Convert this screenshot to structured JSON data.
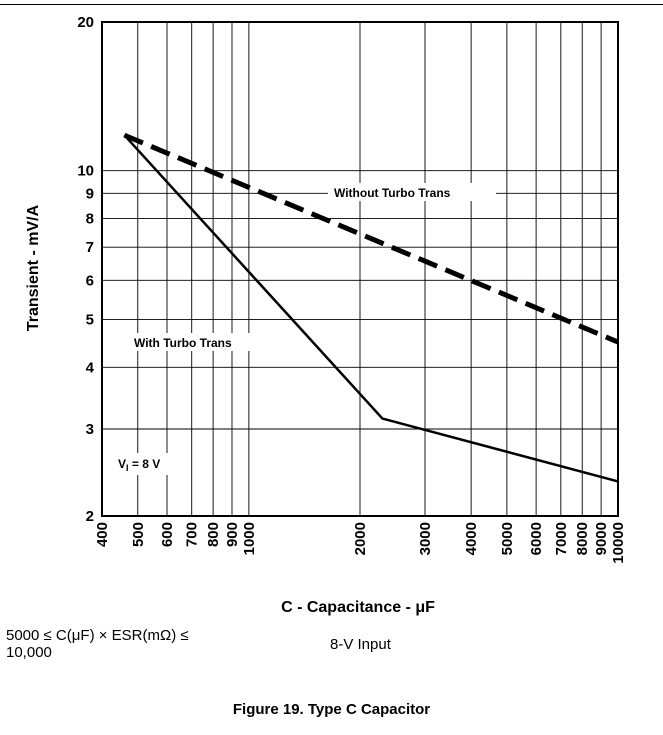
{
  "chart_data": {
    "type": "line",
    "title": "",
    "xlabel": "C - Capacitance - μF",
    "ylabel": "Transient - mV/A",
    "xscale": "log",
    "yscale": "log",
    "xlim": [
      400,
      10000
    ],
    "ylim": [
      2,
      20
    ],
    "grid": true,
    "x_ticks": [
      400,
      500,
      600,
      700,
      800,
      900,
      1000,
      2000,
      3000,
      4000,
      5000,
      6000,
      7000,
      8000,
      9000,
      10000
    ],
    "x_tick_labels": [
      "400",
      "500",
      "600",
      "700",
      "800",
      "900",
      "1000",
      "2000",
      "3000",
      "4000",
      "5000",
      "6000",
      "7000",
      "8000",
      "9000",
      "10000"
    ],
    "y_ticks": [
      2,
      3,
      4,
      5,
      6,
      7,
      8,
      9,
      10,
      20
    ],
    "y_tick_labels": [
      "2",
      "3",
      "4",
      "5",
      "6",
      "7",
      "8",
      "9",
      "10",
      "20"
    ],
    "series": [
      {
        "name": "Without Turbo Trans",
        "style": "dashed",
        "x": [
          460,
          10000
        ],
        "y": [
          11.8,
          4.5
        ]
      },
      {
        "name": "With Turbo Trans",
        "style": "solid",
        "x": [
          460,
          2300,
          10000
        ],
        "y": [
          11.8,
          3.15,
          2.35
        ]
      }
    ],
    "annotations": {
      "without_label": "Without Turbo Trans",
      "with_label": "With Turbo Trans",
      "vi_main": "V",
      "vi_sub": "I",
      "vi_rest": " = 8 V"
    }
  },
  "footer": {
    "condition_line1": "5000 ≤ C(μF) × ESR(mΩ) ≤",
    "condition_line2": "10,000",
    "input": "8-V Input"
  },
  "caption": "Figure 19. Type C Capacitor"
}
